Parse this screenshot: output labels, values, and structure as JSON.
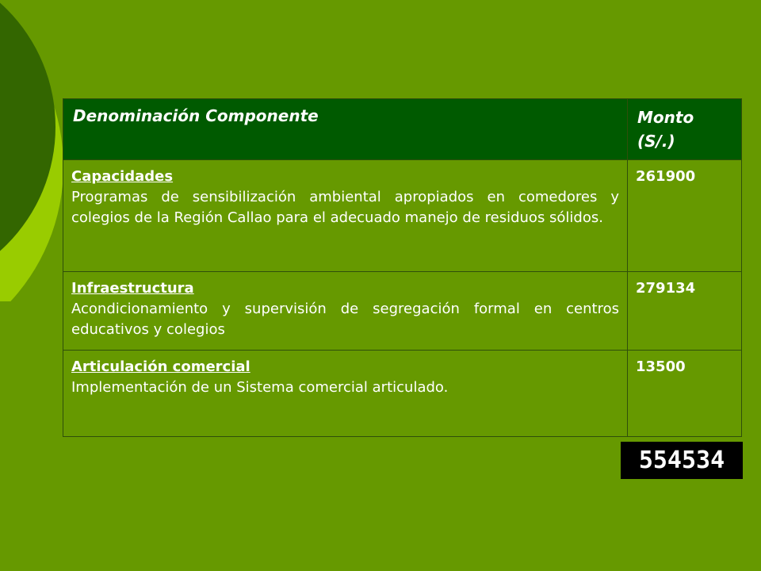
{
  "table": {
    "header": {
      "name": "Denominación Componente",
      "amount": "Monto (S/.)"
    },
    "rows": [
      {
        "category": "Capacidades",
        "description": "Programas de sensibilización  ambiental apropiados en comedores y colegios de la Región Callao para el adecuado manejo de residuos sólidos.",
        "amount": "261900"
      },
      {
        "category": "Infraestructura",
        "description": "Acondicionamiento y supervisión de  segregación formal en centros educativos y colegios",
        "amount": "279134"
      },
      {
        "category": "Articulación comercial",
        "description": "Implementación de un Sistema comercial articulado.",
        "amount": "13500"
      }
    ]
  },
  "total": "554534",
  "colors": {
    "background": "#669900",
    "header_fill": "#005a00",
    "circle_light": "#99cc00",
    "circle_dark": "#336600",
    "total_box": "#000000",
    "text": "#ffffff"
  }
}
